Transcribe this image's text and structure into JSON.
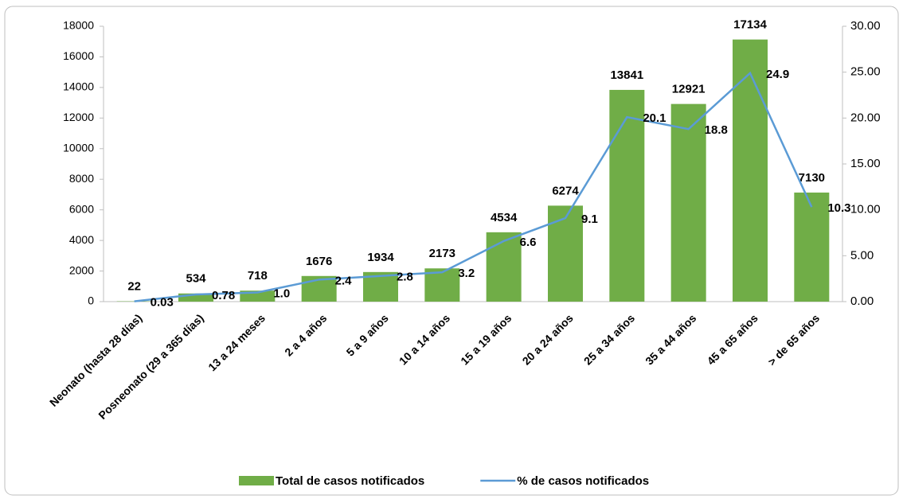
{
  "chart_data": {
    "type": "bar",
    "categories": [
      "Neonato (hasta 28 días)",
      "Posneonato (29 a 365 días)",
      "13 a 24 meses",
      "2 a 4 años",
      "5 a 9 años",
      "10 a 14 años",
      "15 a 19 años",
      "20 a 24 años",
      "25 a 34 años",
      "35 a 44 años",
      "45 a 65 años",
      "> de 65 años"
    ],
    "series": [
      {
        "name": "Total de casos notificados",
        "type": "bar",
        "color": "#70ad47",
        "label_color": "#ed7d31",
        "values": [
          22,
          534,
          718,
          1676,
          1934,
          2173,
          4534,
          6274,
          13841,
          12921,
          17134,
          7130
        ]
      },
      {
        "name": "% de casos notificados",
        "type": "line",
        "axis": "y2",
        "color": "#5b9bd5",
        "label_color": "#000000",
        "values": [
          0.03,
          0.78,
          1.0,
          2.4,
          2.8,
          3.2,
          6.6,
          9.1,
          20.1,
          18.8,
          24.9,
          10.3
        ],
        "value_labels": [
          "0.03",
          "0.78",
          "1.0",
          "2.4",
          "2.8",
          "3.2",
          "6.6",
          "9.1",
          "20.1",
          "18.8",
          "24.9",
          "10.3"
        ]
      }
    ],
    "ylim": [
      0,
      18000
    ],
    "yticks": [
      0,
      2000,
      4000,
      6000,
      8000,
      10000,
      12000,
      14000,
      16000,
      18000
    ],
    "y2lim": [
      0,
      30
    ],
    "y2ticks": [
      {
        "value": 0,
        "label": "0.00"
      },
      {
        "value": 5,
        "label": "5.00"
      },
      {
        "value": 10,
        "label": "10.00"
      },
      {
        "value": 15,
        "label": "15.00"
      },
      {
        "value": 20,
        "label": "20.00"
      },
      {
        "value": 25,
        "label": "25.00"
      },
      {
        "value": 30,
        "label": "30.00"
      }
    ],
    "legend": "bottom"
  }
}
